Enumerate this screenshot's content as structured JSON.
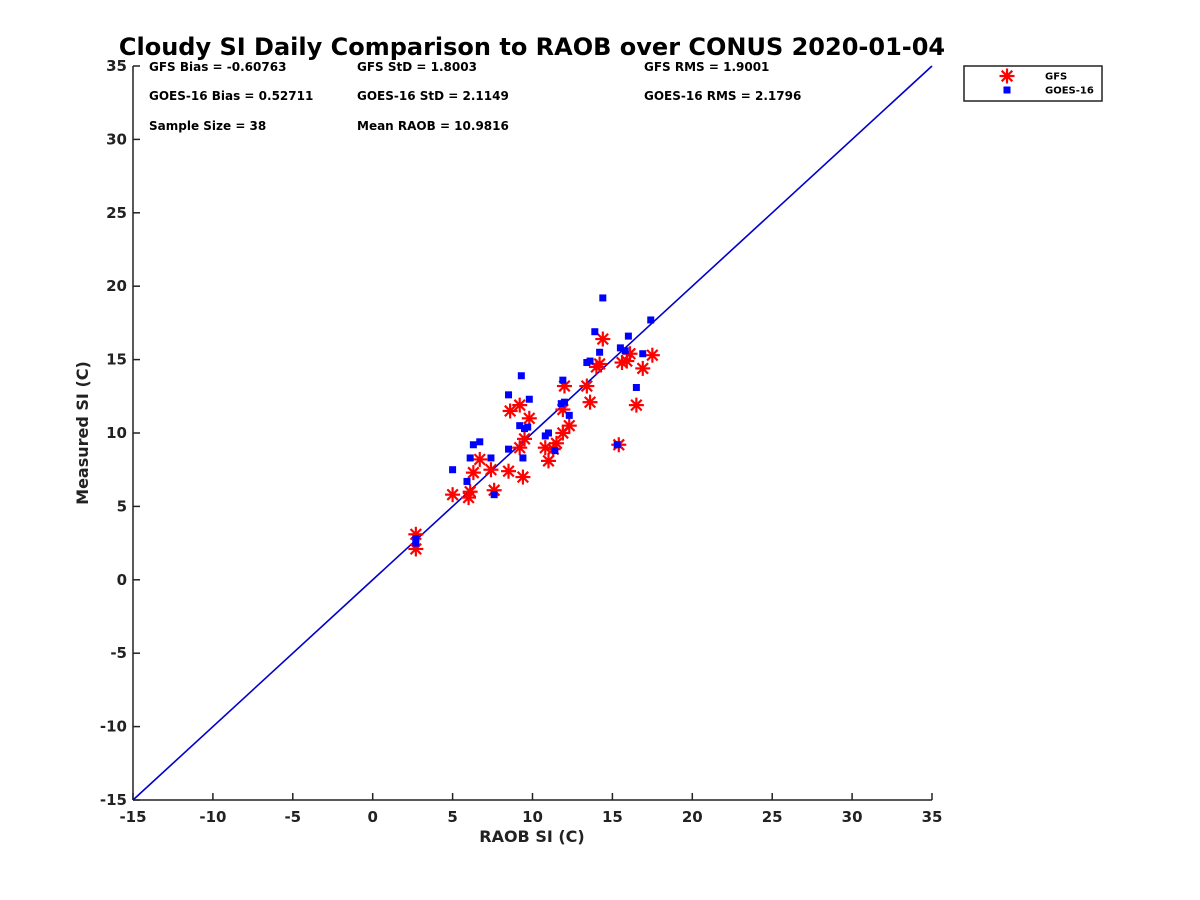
{
  "chart_data": {
    "type": "scatter",
    "title": "Cloudy SI Daily Comparison to RAOB over CONUS 2020-01-04",
    "xlabel": "RAOB SI (C)",
    "ylabel": "Measured SI (C)",
    "xlim": [
      -15,
      35
    ],
    "ylim": [
      -15,
      35
    ],
    "xticks": [
      -15,
      -10,
      -5,
      0,
      5,
      10,
      15,
      20,
      25,
      30,
      35
    ],
    "yticks": [
      -15,
      -10,
      -5,
      0,
      5,
      10,
      15,
      20,
      25,
      30,
      35
    ],
    "grid": false,
    "legend_position": "top-right, outside plot",
    "reference_line": {
      "from": [
        -15,
        -15
      ],
      "to": [
        35,
        35
      ],
      "color": "#0000cc"
    },
    "stats": [
      {
        "text": "GFS Bias = -0.60763",
        "column": 0,
        "row": 0
      },
      {
        "text": "GFS StD = 1.8003",
        "column": 1,
        "row": 0
      },
      {
        "text": "GFS RMS = 1.9001",
        "column": 2,
        "row": 0
      },
      {
        "text": "GOES-16 Bias = 0.52711",
        "column": 0,
        "row": 1
      },
      {
        "text": "GOES-16 StD = 2.1149",
        "column": 1,
        "row": 1
      },
      {
        "text": "GOES-16 RMS = 2.1796",
        "column": 2,
        "row": 1
      },
      {
        "text": "Sample Size = 38",
        "column": 0,
        "row": 2
      },
      {
        "text": "Mean RAOB = 10.9816",
        "column": 1,
        "row": 2
      }
    ],
    "series": [
      {
        "name": "GFS",
        "marker": "asterisk",
        "color": "#ff0000",
        "points": [
          [
            2.7,
            3.1
          ],
          [
            2.7,
            2.1
          ],
          [
            5.0,
            5.8
          ],
          [
            6.0,
            5.6
          ],
          [
            6.1,
            6.0
          ],
          [
            6.3,
            7.3
          ],
          [
            6.7,
            8.2
          ],
          [
            7.4,
            7.5
          ],
          [
            7.6,
            6.1
          ],
          [
            8.5,
            7.4
          ],
          [
            8.6,
            11.5
          ],
          [
            9.2,
            11.9
          ],
          [
            9.2,
            9.0
          ],
          [
            9.4,
            7.0
          ],
          [
            9.5,
            9.6
          ],
          [
            9.8,
            11.0
          ],
          [
            10.8,
            9.0
          ],
          [
            11.0,
            8.1
          ],
          [
            11.3,
            8.9
          ],
          [
            11.5,
            9.3
          ],
          [
            11.9,
            10.0
          ],
          [
            11.9,
            11.6
          ],
          [
            12.0,
            13.2
          ],
          [
            12.3,
            10.5
          ],
          [
            13.4,
            13.2
          ],
          [
            13.6,
            12.1
          ],
          [
            14.0,
            14.5
          ],
          [
            14.2,
            14.7
          ],
          [
            14.4,
            16.4
          ],
          [
            15.4,
            9.2
          ],
          [
            15.6,
            14.8
          ],
          [
            15.9,
            14.9
          ],
          [
            16.1,
            15.4
          ],
          [
            16.5,
            11.9
          ],
          [
            16.9,
            14.4
          ],
          [
            17.5,
            15.3
          ]
        ]
      },
      {
        "name": "GOES-16",
        "marker": "square",
        "color": "#0000ff",
        "points": [
          [
            2.7,
            2.8
          ],
          [
            2.7,
            2.5
          ],
          [
            5.0,
            7.5
          ],
          [
            5.9,
            6.7
          ],
          [
            6.1,
            8.3
          ],
          [
            6.3,
            9.2
          ],
          [
            6.7,
            9.4
          ],
          [
            7.4,
            8.3
          ],
          [
            7.6,
            5.8
          ],
          [
            8.5,
            8.9
          ],
          [
            8.5,
            12.6
          ],
          [
            9.2,
            10.5
          ],
          [
            9.3,
            13.9
          ],
          [
            9.4,
            8.3
          ],
          [
            9.5,
            10.3
          ],
          [
            9.7,
            10.4
          ],
          [
            9.8,
            12.3
          ],
          [
            10.8,
            9.8
          ],
          [
            11.0,
            10.0
          ],
          [
            11.4,
            8.8
          ],
          [
            11.8,
            12.0
          ],
          [
            11.9,
            13.6
          ],
          [
            12.0,
            12.1
          ],
          [
            12.3,
            11.2
          ],
          [
            13.4,
            14.8
          ],
          [
            13.6,
            14.9
          ],
          [
            13.9,
            16.9
          ],
          [
            14.2,
            15.5
          ],
          [
            14.4,
            19.2
          ],
          [
            15.3,
            9.2
          ],
          [
            15.5,
            15.8
          ],
          [
            15.8,
            15.6
          ],
          [
            16.0,
            16.6
          ],
          [
            16.5,
            13.1
          ],
          [
            16.9,
            15.4
          ],
          [
            17.4,
            17.7
          ]
        ]
      }
    ]
  }
}
